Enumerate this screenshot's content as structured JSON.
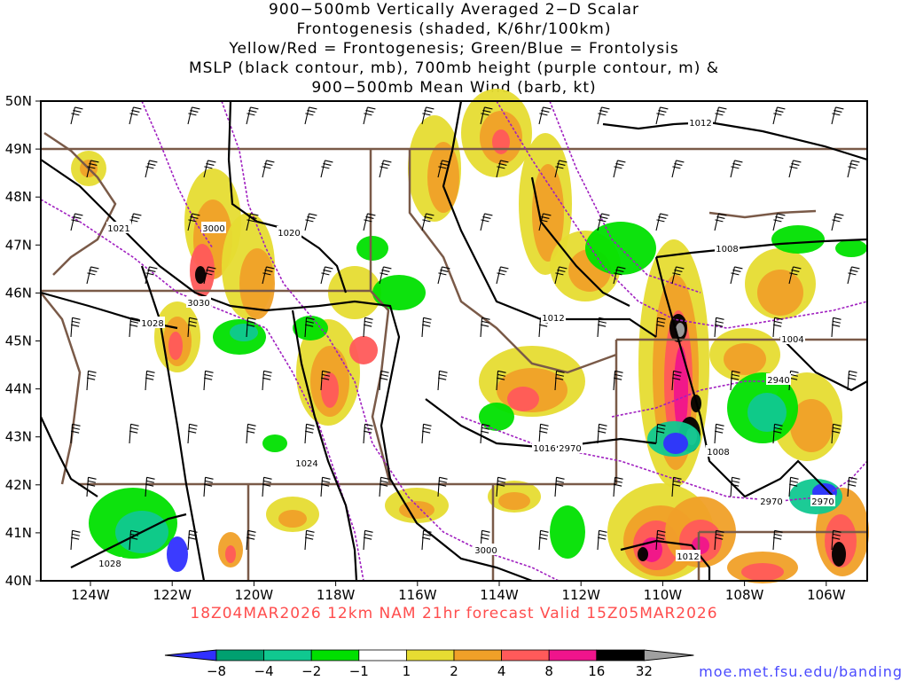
{
  "title": {
    "line1": "900−500mb Vertically Averaged 2−D Scalar",
    "line2": "Frontogenesis (shaded, K/6hr/100km)",
    "line3": "Yellow/Red = Frontogenesis;  Green/Blue = Frontolysis",
    "line4": "MSLP (black contour, mb), 700mb height (purple contour, m) &",
    "line5": "900−500mb Mean Wind (barb, kt)"
  },
  "axes": {
    "lat_labels": [
      "50N",
      "49N",
      "48N",
      "47N",
      "46N",
      "45N",
      "44N",
      "43N",
      "42N",
      "41N",
      "40N"
    ],
    "lon_labels": [
      "124W",
      "122W",
      "120W",
      "118W",
      "116W",
      "114W",
      "112W",
      "110W",
      "108W",
      "106W"
    ]
  },
  "valid_line": "18Z04MAR2026 12km NAM 21hr forecast Valid 15Z05MAR2026",
  "colorbar": {
    "labels": [
      "−8",
      "−4",
      "−2",
      "−1",
      "1",
      "2",
      "4",
      "8",
      "16",
      "32"
    ],
    "colors": [
      "#3030ff",
      "#00a070",
      "#10c890",
      "#00e000",
      "#ffffff",
      "#e6dc32",
      "#f0a028",
      "#ff5a5a",
      "#f0148c",
      "#000000",
      "#a0a0a0"
    ]
  },
  "contour_labels": {
    "mslp": [
      "1012",
      "1020",
      "1028",
      "1024",
      "1016",
      "1012",
      "1008",
      "1004",
      "1008",
      "1012",
      "1028"
    ],
    "height": [
      "3000",
      "3030",
      "2970",
      "2970",
      "2940",
      "2970",
      "3000"
    ],
    "extra": [
      "1021"
    ]
  },
  "credit": "moe.met.fsu.edu/banding",
  "colors": {
    "mslp": "#000000",
    "height": "#a020c0",
    "border": "#7a5a48",
    "wind": "#000000"
  }
}
